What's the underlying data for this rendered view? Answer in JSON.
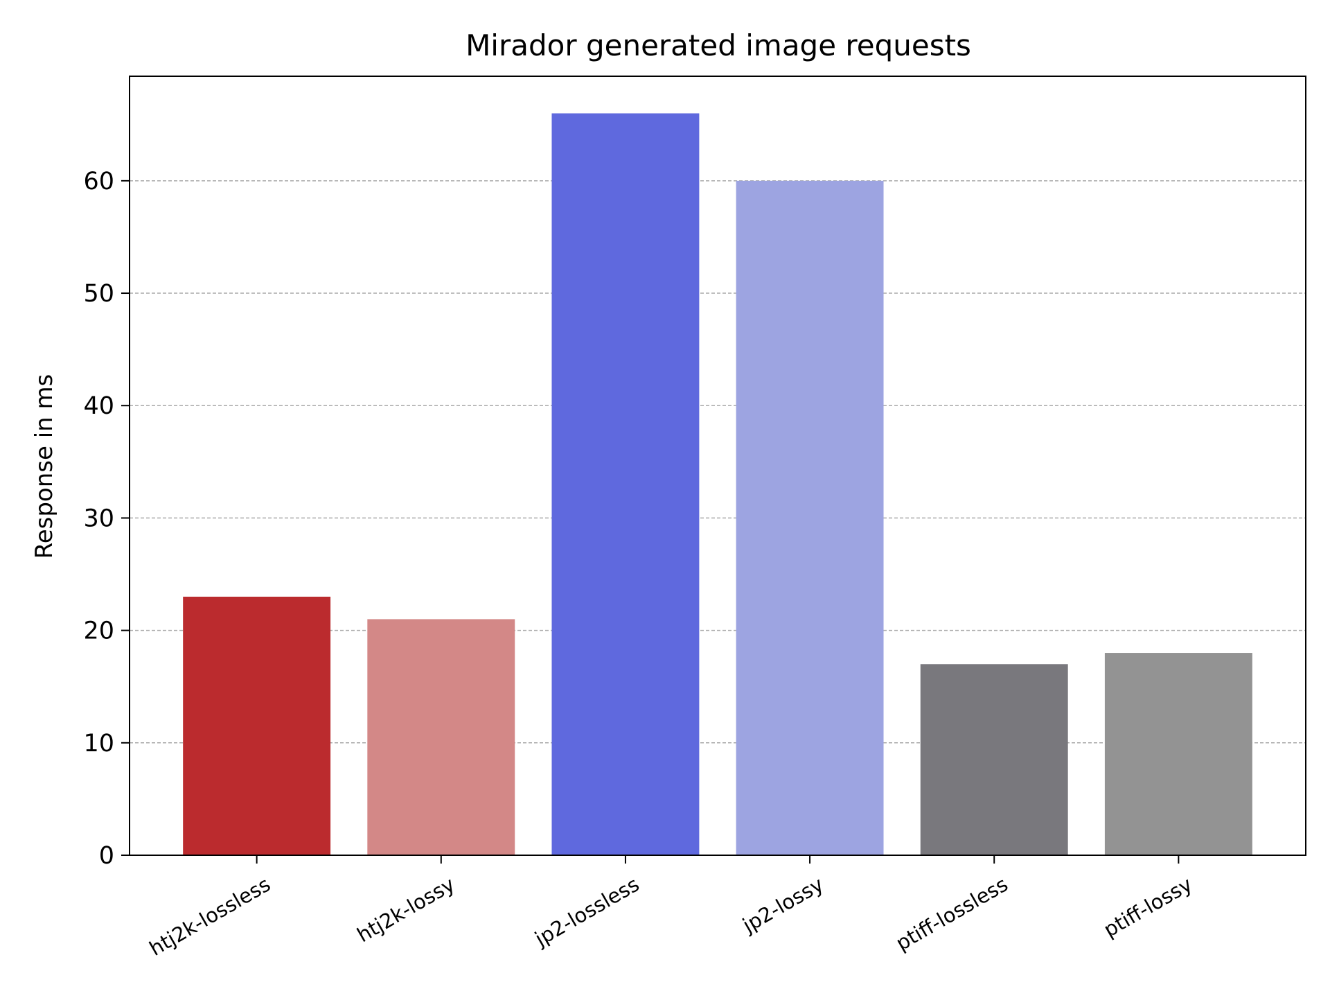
{
  "chart_data": {
    "type": "bar",
    "title": "Mirador generated image requests",
    "xlabel": "",
    "ylabel": "Response in ms",
    "categories": [
      "htj2k-lossless",
      "htj2k-lossy",
      "jp2-lossless",
      "jp2-lossy",
      "ptiff-lossless",
      "ptiff-lossy"
    ],
    "values": [
      23,
      21,
      66,
      60,
      17,
      18
    ],
    "bar_colors": [
      "#bb2b2e",
      "#d38887",
      "#5f69de",
      "#9da4e1",
      "#79787d",
      "#939393"
    ],
    "ylim": [
      0,
      69.3
    ],
    "yticks": [
      0,
      10,
      20,
      30,
      40,
      50,
      60
    ],
    "grid": {
      "axis": "y",
      "style": "dashed",
      "color": "#aaaaaa"
    },
    "legend": "none"
  }
}
